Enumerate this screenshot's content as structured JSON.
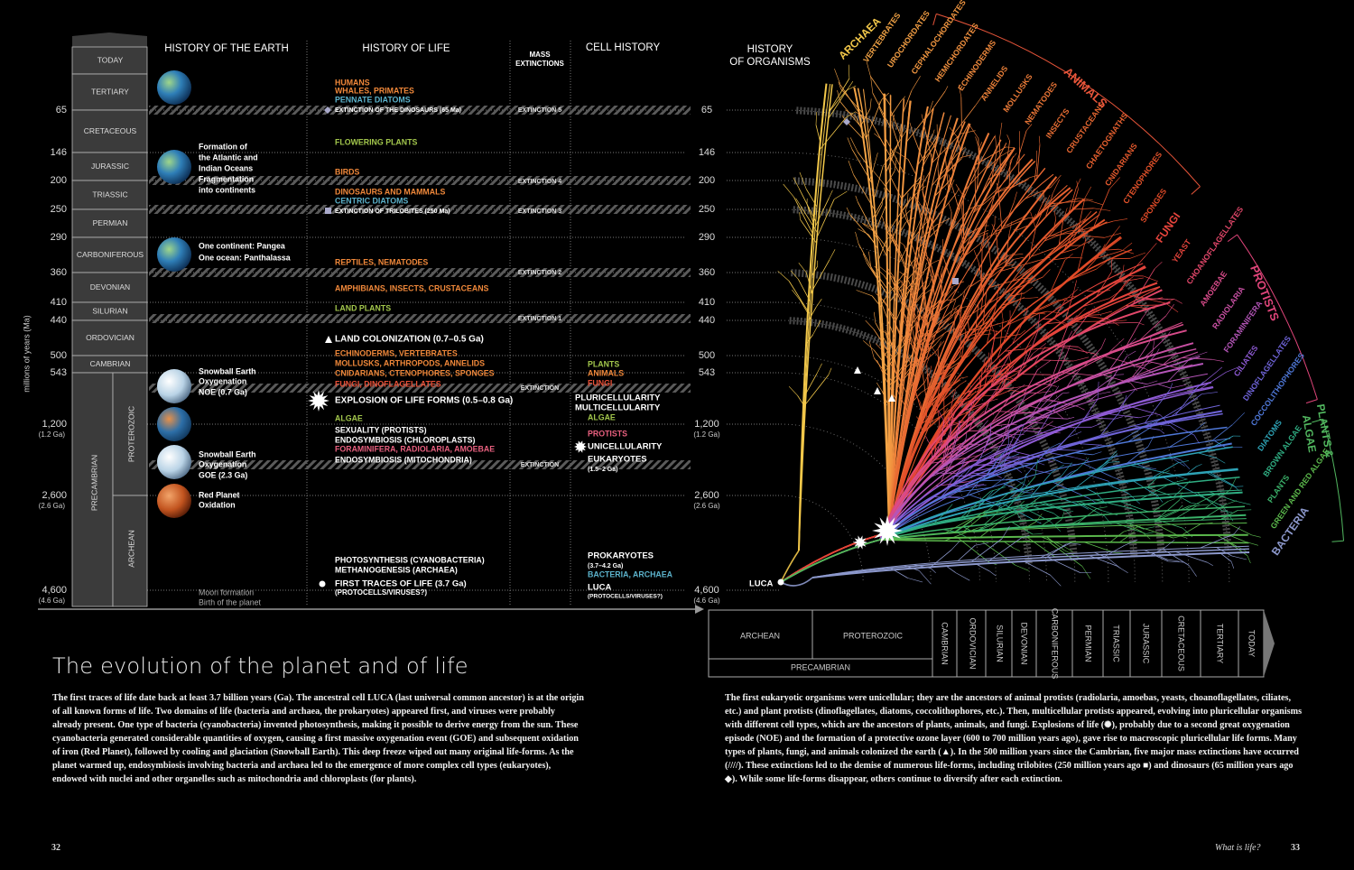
{
  "header": {
    "earth": "HISTORY OF THE EARTH",
    "life": "HISTORY OF LIFE",
    "extinctions": [
      "MASS",
      "EXTINCTIONS"
    ],
    "cells": "CELL HISTORY",
    "organisms": [
      "HISTORY",
      "OF ORGANISMS"
    ]
  },
  "axis_label": "millions of years (Ma)",
  "periods": [
    "TODAY",
    "TERTIARY",
    "CRETACEOUS",
    "JURASSIC",
    "TRIASSIC",
    "PERMIAN",
    "CARBONIFEROUS",
    "DEVONIAN",
    "SILURIAN",
    "ORDOVICIAN",
    "CAMBRIAN"
  ],
  "eons": [
    "PROTEROZOIC",
    "ARCHEAN"
  ],
  "supereon": "PRECAMBRIAN",
  "times": [
    "65",
    "146",
    "200",
    "250",
    "290",
    "360",
    "410",
    "440",
    "500",
    "543",
    "1,200",
    "2,600",
    "4,600"
  ],
  "times_ga": [
    "(1.2 Ga)",
    "(2.6 Ga)",
    "(4.6 Ga)"
  ],
  "earth": [
    [
      "Formation of",
      "the Atlantic and",
      "Indian Oceans",
      "Fragmentation",
      "into continents"
    ],
    [
      "One continent: Pangea",
      "One ocean: Panthalassa"
    ],
    [
      "Snowball Earth",
      "Oxygenation",
      "NOE (0.7 Ga)"
    ],
    [
      "Snowball Earth",
      "Oxygenation",
      "GOE (2.3 Ga)"
    ],
    [
      "Red Planet",
      "Oxidation"
    ],
    [
      "Moon formation",
      "Birth of the planet"
    ]
  ],
  "life": [
    "HUMANS",
    "WHALES, PRIMATES",
    "PENNATE DIATOMS",
    "EXTINCTION OF THE DINOSAURS (65 Ma)",
    "FLOWERING PLANTS",
    "BIRDS",
    "DINOSAURS AND MAMMALS",
    "CENTRIC DIATOMS",
    "EXTINCTION OF TRILOBITES (250 Ma)",
    "REPTILES, NEMATODES",
    "AMPHIBIANS, INSECTS, CRUSTACEANS",
    "LAND PLANTS",
    "LAND COLONIZATION (0.7–0.5 Ga)",
    "ECHINODERMS, VERTEBRATES",
    "MOLLUSKS, ARTHROPODS, ANNELIDS",
    "CNIDARIANS, CTENOPHORES, SPONGES",
    "FUNGI, DINOFLAGELLATES",
    "EXPLOSION OF LIFE FORMS (0.5–0.8 Ga)",
    "ALGAE",
    "SEXUALITY (PROTISTS)",
    "ENDOSYMBIOSIS (CHLOROPLASTS)",
    "FORAMINIFERA, RADIOLARIA, AMOEBAE",
    "ENDOSYMBIOSIS (MITOCHONDRIA)",
    "PHOTOSYNTHESIS (CYANOBACTERIA)",
    "METHANOGENESIS (ARCHAEA)",
    "FIRST TRACES OF LIFE (3.7 Ga)",
    "(PROTOCELLS/VIRUSES?)"
  ],
  "extinctions": [
    "EXTINCTION 5",
    "EXTINCTION 4",
    "EXTINCTION 3",
    "EXTINCTION 2",
    "EXTINCTION 1",
    "EXTINCTION",
    "EXTINCTION"
  ],
  "cells": [
    "PLANTS",
    "ANIMALS",
    "FUNGI",
    "PLURICELLULARITY",
    "MULTICELLULARITY",
    "ALGAE",
    "PROTISTS",
    "UNICELLULARITY",
    "EUKARYOTES",
    "(1.5–2 Ga)",
    "PROKARYOTES",
    "(3.7–4.2 Ga)",
    "BACTERIA, ARCHAEA",
    "LUCA",
    "(PROTOCELLS/VIRUSES?)"
  ],
  "tree": {
    "luca": "LUCA",
    "clades": [
      "ARCHAEA",
      "VERTEBRATES",
      "UROCHORDATES",
      "CEPHALOCHORDATES",
      "HEMICHORDATES",
      "ECHINODERMS",
      "ANNELIDS",
      "MOLLUSKS",
      "NEMATODES",
      "INSECTS",
      "CRUSTACEANS",
      "CHAETOGNATHS",
      "CNIDARIANS",
      "CTENOPHORES",
      "SPONGES",
      "FUNGI",
      "YEAST",
      "CHOANOFLAGELLATES",
      "AMOEBAE",
      "RADIOLARIA",
      "FORAMINIFERA",
      "CILIATES",
      "DINOFLAGELLATES",
      "COCCOLITHOPHORES",
      "DIATOMS",
      "BROWN ALGAE",
      "PLANTS",
      "GREEN AND RED ALGAE",
      "BACTERIA"
    ],
    "groups": {
      "animals": "ANIMALS",
      "protists": "PROTISTS",
      "plants": [
        "PLANTS &",
        "ALGAE"
      ]
    }
  },
  "title": "The evolution of the planet and of life",
  "paragraphs": [
    "The first traces of life date back at least 3.7 billion years (Ga). The ancestral cell LUCA (last universal common ancestor) is at the origin of all known forms of life. Two domains of life (bacteria and archaea, the prokaryotes) appeared first, and viruses were probably already present. One type of bacteria (cyanobacteria) invented photosynthesis, making it possible to derive energy from the sun. These cyanobacteria generated considerable quantities of oxygen, causing a first massive oxygenation event (GOE) and subsequent oxidation of iron (Red Planet), followed by cooling and glaciation (Snowball Earth). This deep freeze wiped out many original life-forms. As the planet warmed up, endosymbiosis involving bacteria and archaea led to the emergence of more complex cell types (eukaryotes), endowed with nuclei and other organelles such as mitochondria and chloroplasts (for plants).",
    "The first eukaryotic organisms were unicellular; they are the ancestors of animal protists (radiolaria, amoebas, yeasts, choanoflagellates, ciliates, etc.) and plant protists (dinoflagellates, diatoms, coccolithophores, etc.). Then, multicellular protists appeared, evolving into pluricellular organisms with different cell types, which are the ancestors of plants, animals, and fungi. Explosions of life (✺), probably due to a second great oxygenation episode (NOE) and the formation of a protective ozone layer (600 to 700 million years ago), gave rise to macroscopic pluricellular life forms. Many types of plants, fungi, and animals colonized the earth (▲). In the 500 million years since the Cambrian, five major mass extinctions have occurred (////). These extinctions led to the demise of numerous life-forms, including trilobites (250 million years ago ■) and dinosaurs (65 million years ago ◆). While some life-forms disappear, others continue to diversify after each extinction."
  ],
  "footer": {
    "left_page": "32",
    "section": "What is life?",
    "right_page": "33"
  }
}
